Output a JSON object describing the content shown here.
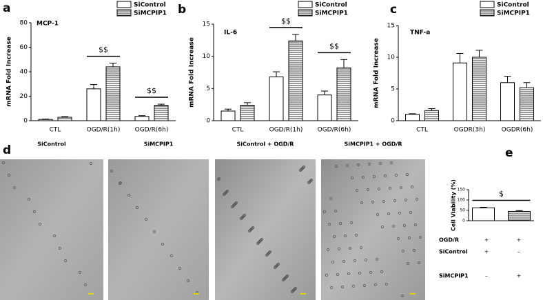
{
  "chart_data": [
    {
      "type": "bar",
      "panel_label": "a",
      "title": "MCP-1",
      "ylabel": "mRNA Fold Increase",
      "categories": [
        "CTL",
        "OGD/R(1h)",
        "OGD/R(6h)"
      ],
      "series": [
        {
          "name": "SiControl",
          "hatch": false,
          "values": [
            1,
            26,
            3.5
          ],
          "errors": [
            0.3,
            3.5,
            0.6
          ]
        },
        {
          "name": "SiMCPIP1",
          "hatch": true,
          "values": [
            2.8,
            44,
            12.5
          ],
          "errors": [
            0.5,
            3,
            1
          ]
        }
      ],
      "ylim": [
        0,
        80
      ],
      "yticks": [
        0,
        20,
        40,
        60,
        80
      ],
      "annotations": [
        "$$",
        "$$"
      ]
    },
    {
      "type": "bar",
      "panel_label": "b",
      "title": "IL-6",
      "ylabel": "mRNA Fold Increase",
      "categories": [
        "CTL",
        "OGD/R(1h)",
        "OGD/R(6h)"
      ],
      "series": [
        {
          "name": "SiControl",
          "hatch": false,
          "values": [
            1.5,
            6.8,
            4.0
          ],
          "errors": [
            0.3,
            0.8,
            0.6
          ]
        },
        {
          "name": "SiMCPIP1",
          "hatch": true,
          "values": [
            2.4,
            12.4,
            8.2
          ],
          "errors": [
            0.4,
            1.0,
            1.3
          ]
        }
      ],
      "ylim": [
        0,
        15
      ],
      "yticks": [
        0,
        5,
        10,
        15
      ],
      "annotations": [
        "$$",
        "$$"
      ]
    },
    {
      "type": "bar",
      "panel_label": "c",
      "title": "TNF-a",
      "ylabel": "mRNA Fold Increase",
      "categories": [
        "CTL",
        "OGDR(3h)",
        "OGDR(6h)"
      ],
      "series": [
        {
          "name": "SiControl",
          "hatch": false,
          "values": [
            1.0,
            9.1,
            6.0
          ],
          "errors": [
            0.1,
            1.5,
            1.0
          ]
        },
        {
          "name": "SiMCPIP1",
          "hatch": true,
          "values": [
            1.6,
            10.0,
            5.2
          ],
          "errors": [
            0.3,
            1.1,
            0.8
          ]
        }
      ],
      "ylim": [
        0,
        15
      ],
      "yticks": [
        0,
        5,
        10,
        15
      ],
      "annotations": []
    },
    {
      "type": "bar",
      "panel_label": "e",
      "ylabel": "Cell Viability (%)",
      "categories": [
        null
      ],
      "series": [
        {
          "hatch": false,
          "values": [
            62
          ],
          "errors": [
            3
          ]
        },
        {
          "hatch": true,
          "values": [
            45
          ],
          "errors": [
            4
          ]
        }
      ],
      "ylim": [
        0,
        150
      ],
      "yticks": [
        0,
        50,
        100,
        150
      ],
      "annotations": [
        "$"
      ],
      "conditions": [
        {
          "label": "OGD/R",
          "cells": [
            "+",
            "+"
          ]
        },
        {
          "label": "SiControl",
          "cells": [
            "+",
            "–"
          ]
        },
        {
          "label": "SiMCPIP1",
          "cells": [
            "–",
            "+"
          ]
        }
      ]
    }
  ],
  "images": {
    "panel_label": "d",
    "titles": [
      "SiControl",
      "SiMCPIP1",
      "SiControl + OGD/R",
      "SiMCPIP1 + OGD/R"
    ]
  }
}
